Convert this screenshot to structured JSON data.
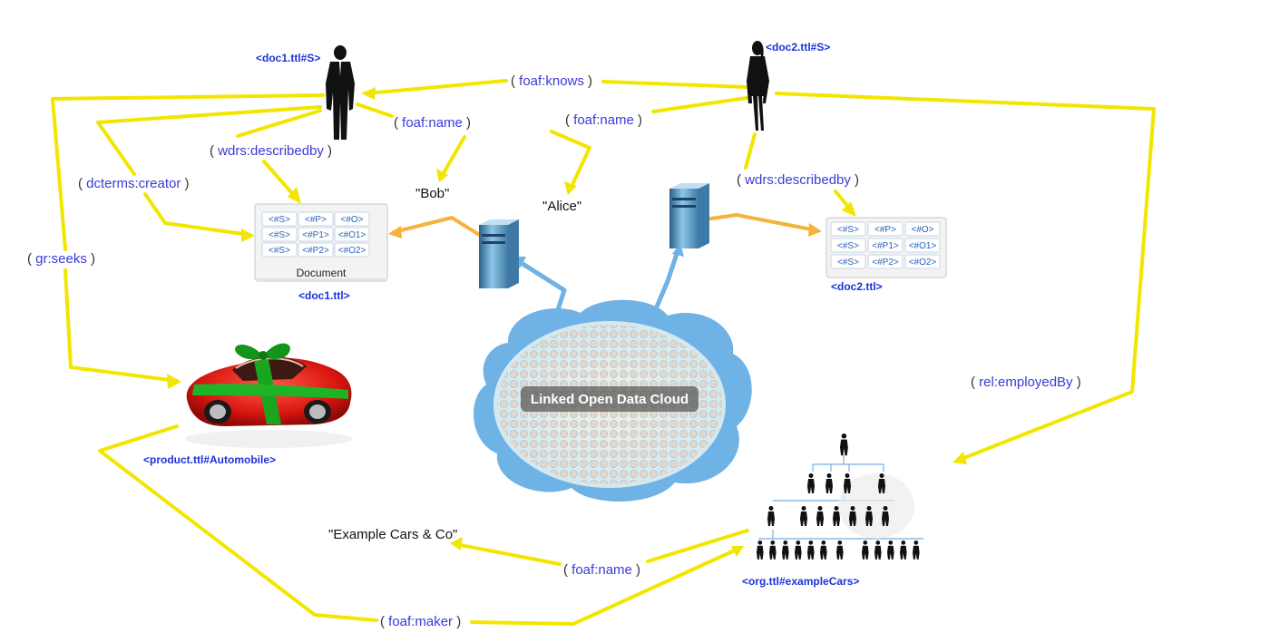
{
  "nodes": {
    "doc1_subject": "<doc1.ttl#S>",
    "doc2_subject": "<doc2.ttl#S>",
    "doc1": "<doc1.ttl>",
    "doc2": "<doc2.ttl>",
    "document_label": "Document",
    "product": "<product.ttl#Automobile>",
    "org": "<org.ttl#exampleCars>",
    "cloud_label": "Linked Open Data Cloud"
  },
  "literals": {
    "bob": "\"Bob\"",
    "alice": "\"Alice\"",
    "example_cars": "\"Example Cars & Co\""
  },
  "predicates": {
    "knows": "foaf:knows",
    "name_bob": "foaf:name",
    "name_alice": "foaf:name",
    "describedby_1": "wdrs:describedby",
    "describedby_2": "wdrs:describedby",
    "creator": "dcterms:creator",
    "seeks": "gr:seeks",
    "employed_by": "rel:employedBy",
    "name_org": "foaf:name",
    "maker": "foaf:maker"
  },
  "doc1_table": [
    [
      "<#S>",
      "<#P>",
      "<#O>"
    ],
    [
      "<#S>",
      "<#P1>",
      "<#O1>"
    ],
    [
      "<#S>",
      "<#P2>",
      "<#O2>"
    ]
  ],
  "doc2_table": [
    [
      "<#S>",
      "<#P>",
      "<#O>"
    ],
    [
      "<#S>",
      "<#P1>",
      "<#O1>"
    ],
    [
      "<#S>",
      "<#P2>",
      "<#O2>"
    ]
  ],
  "colors": {
    "link": "#f2e600",
    "server_link": "#f4b33c",
    "cloud": "#6fb2e6",
    "uri_text": "#1a33d8"
  }
}
